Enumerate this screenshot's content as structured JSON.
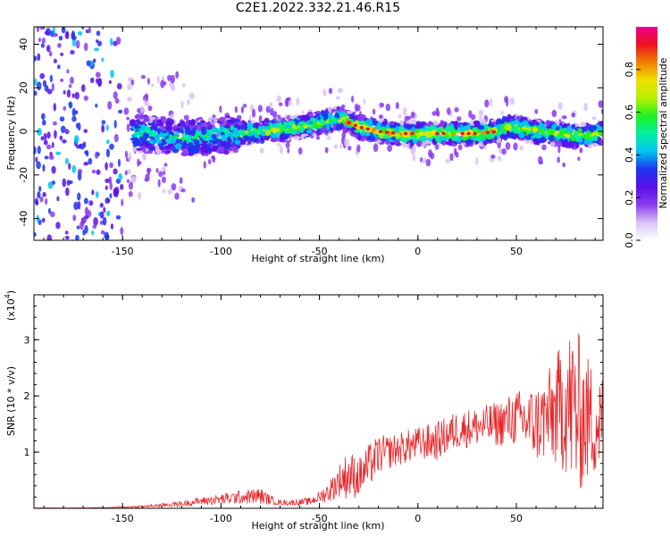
{
  "title": "C2E1.2022.332.21.46.R15",
  "colors": {
    "snr_line": "#e8262a",
    "colormap": [
      "#ffffff",
      "#d9c2f5",
      "#8a3cf0",
      "#5a10e8",
      "#1c35f0",
      "#00c6f0",
      "#00f0a0",
      "#20f020",
      "#b8f000",
      "#f0e000",
      "#f08000",
      "#f01020",
      "#f0008c"
    ]
  },
  "chart_data": [
    {
      "type": "heatmap",
      "xlabel": "Height of straight line (km)",
      "ylabel": "Frequency (Hz)",
      "xlim": [
        -195,
        94
      ],
      "ylim": [
        -50,
        48
      ],
      "x_ticks": [
        -150,
        -100,
        -50,
        0,
        50
      ],
      "y_ticks": [
        -40,
        -20,
        0,
        20,
        40
      ],
      "ridge": {
        "x": [
          -195,
          -150,
          -140,
          -120,
          -100,
          -80,
          -60,
          -45,
          -40,
          -35,
          -30,
          -20,
          -10,
          0,
          10,
          20,
          30,
          40,
          45,
          50,
          60,
          70,
          80,
          94
        ],
        "y": [
          0,
          0,
          -1,
          -3,
          -2,
          0,
          2,
          5,
          6,
          4,
          2,
          0,
          -1,
          -1,
          -1,
          -1,
          -1,
          0,
          2,
          2,
          0,
          -1,
          -2,
          -1
        ]
      },
      "colorbar": {
        "label": "Normalized spectral amplitude",
        "range": [
          0,
          1
        ],
        "ticks": [
          "0.0",
          "0.2",
          "0.4",
          "0.6",
          "0.8"
        ]
      }
    },
    {
      "type": "line",
      "xlabel": "Height of straight line (km)",
      "ylabel": "SNR (10 * v/v)",
      "y_multiplier": "(x10",
      "y_exponent": "4",
      "y_multiplier_close": ")",
      "xlim": [
        -195,
        94
      ],
      "ylim": [
        0,
        3.8
      ],
      "x_ticks": [
        -150,
        -100,
        -50,
        0,
        50
      ],
      "y_ticks": [
        1,
        2,
        3
      ],
      "series": [
        {
          "x": [
            -195,
            -160,
            -140,
            -120,
            -110,
            -100,
            -90,
            -80,
            -75,
            -70,
            -65,
            -55,
            -50,
            -45,
            -40,
            -35,
            -30,
            -25,
            -20,
            -15,
            -10,
            0,
            10,
            20,
            30,
            40,
            50,
            55,
            60,
            65,
            70,
            75,
            80,
            85,
            90,
            94
          ],
          "mean": [
            0.0,
            0.01,
            0.03,
            0.08,
            0.13,
            0.16,
            0.2,
            0.22,
            0.15,
            0.1,
            0.1,
            0.12,
            0.2,
            0.3,
            0.5,
            0.6,
            0.55,
            0.75,
            0.95,
            1.0,
            1.05,
            1.15,
            1.2,
            1.4,
            1.45,
            1.5,
            1.6,
            1.55,
            1.5,
            1.6,
            1.7,
            1.9,
            1.7,
            1.6,
            1.55,
            1.5
          ],
          "amp": [
            0.0,
            0.005,
            0.02,
            0.05,
            0.07,
            0.1,
            0.12,
            0.15,
            0.08,
            0.05,
            0.05,
            0.07,
            0.1,
            0.2,
            0.3,
            0.45,
            0.35,
            0.4,
            0.35,
            0.3,
            0.3,
            0.3,
            0.35,
            0.35,
            0.35,
            0.4,
            0.5,
            0.6,
            0.7,
            0.8,
            1.0,
            1.3,
            1.6,
            1.2,
            1.0,
            0.9
          ]
        }
      ]
    }
  ]
}
